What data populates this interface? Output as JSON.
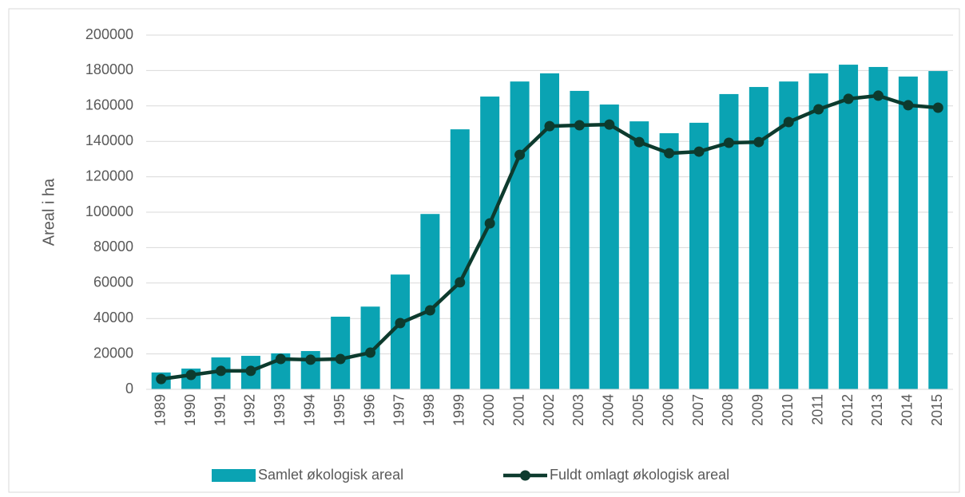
{
  "chart_data": {
    "type": "bar_line",
    "y_label": "Areal i ha",
    "categories": [
      "1989",
      "1990",
      "1991",
      "1992",
      "1993",
      "1994",
      "1995",
      "1996",
      "1997",
      "1998",
      "1999",
      "2000",
      "2001",
      "2002",
      "2003",
      "2004",
      "2005",
      "2006",
      "2007",
      "2008",
      "2009",
      "2010",
      "2011",
      "2012",
      "2013",
      "2014",
      "2015"
    ],
    "series": [
      {
        "name": "Samlet økologisk areal",
        "type": "bar",
        "color": "#0aa3b3",
        "values": [
          9500,
          11700,
          18000,
          18900,
          20300,
          21600,
          41000,
          46700,
          64800,
          99000,
          146800,
          165300,
          173800,
          178400,
          168500,
          160800,
          151300,
          144600,
          150500,
          166700,
          170700,
          173800,
          178400,
          183300,
          182000,
          176600,
          179700
        ]
      },
      {
        "name": "Fuldt omlagt økologisk areal",
        "type": "line",
        "color": "#0d3b2e",
        "values": [
          5800,
          8100,
          10400,
          10400,
          17100,
          16700,
          17100,
          20700,
          37400,
          44600,
          60400,
          93700,
          132400,
          148600,
          149100,
          149500,
          139600,
          133300,
          134200,
          139200,
          139600,
          150900,
          158100,
          164000,
          165800,
          160400,
          159000
        ]
      }
    ],
    "ylim": [
      0,
      200000
    ],
    "yticks": [
      0,
      20000,
      40000,
      60000,
      80000,
      100000,
      120000,
      140000,
      160000,
      180000,
      200000
    ],
    "grid": true,
    "legend": "bottom"
  }
}
